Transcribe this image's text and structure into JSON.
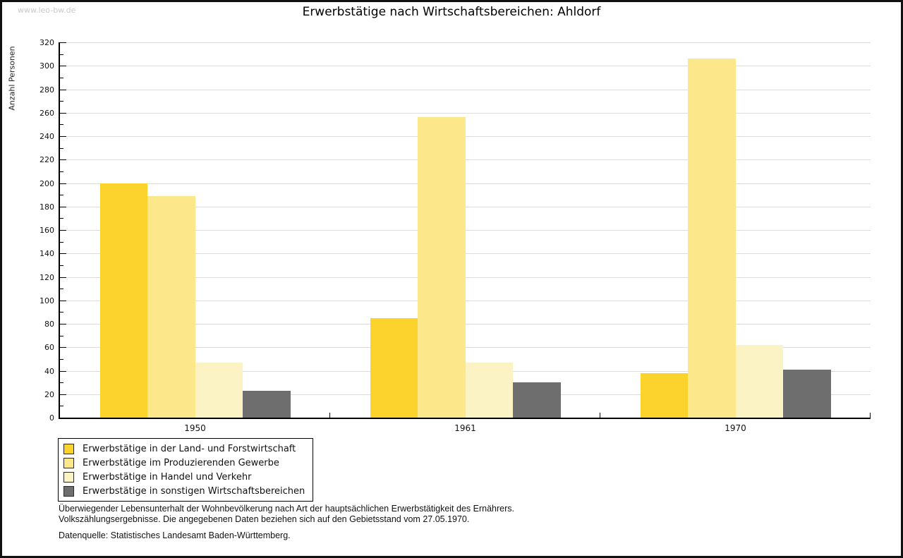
{
  "watermark": "www.leo-bw.de",
  "title": "Erwerbstätige nach Wirtschaftsbereichen: Ahldorf",
  "chart_data": {
    "type": "bar",
    "title": "Erwerbstätige nach Wirtschaftsbereichen: Ahldorf",
    "xlabel": "",
    "ylabel": "Anzahl Personen",
    "ylim": [
      0,
      320
    ],
    "ytick_step": 20,
    "ytick_minor_step": 10,
    "grid": true,
    "gridline_color": "#dcdcdc",
    "legend_position": "bottom-left",
    "categories": [
      "1950",
      "1961",
      "1970"
    ],
    "series": [
      {
        "name": "Erwerbstätige in der Land- und Forstwirtschaft",
        "color": "#FCD32D",
        "values": [
          200,
          85,
          38
        ]
      },
      {
        "name": "Erwerbstätige im Produzierenden Gewerbe",
        "color": "#FCE88A",
        "values": [
          189,
          256,
          306
        ]
      },
      {
        "name": "Erwerbstätige in Handel und Verkehr",
        "color": "#FCF3C5",
        "values": [
          47,
          47,
          62
        ]
      },
      {
        "name": "Erwerbstätige in sonstigen Wirtschaftsbereichen",
        "color": "#6E6E6E",
        "values": [
          23,
          30,
          41
        ]
      }
    ]
  },
  "footer": {
    "line1": "Überwiegender Lebensunterhalt der Wohnbevölkerung nach Art der hauptsächlichen Erwerbstätigkeit des Ernährers.",
    "line2": "Volkszählungsergebnisse. Die angegebenen Daten beziehen sich auf den Gebietsstand vom 27.05.1970.",
    "source": "Datenquelle: Statistisches Landesamt Baden-Württemberg."
  }
}
